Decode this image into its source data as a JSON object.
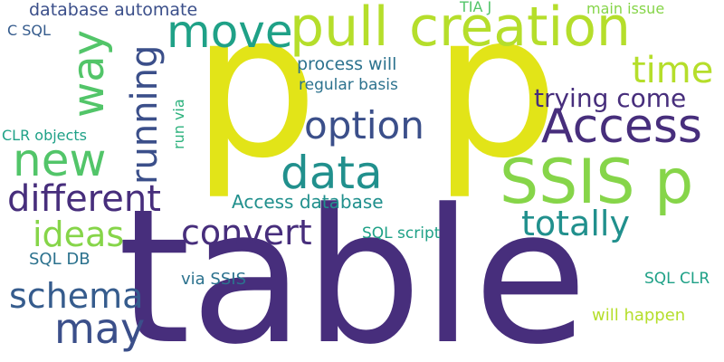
{
  "colors": {
    "background": "#ffffff",
    "dark_purple": "#472e7c",
    "indigo": "#3b4f8a",
    "steel_blue": "#365c8d",
    "blue": "#2c728e",
    "teal": "#21908d",
    "teal_green": "#1fa187",
    "green": "#2db27d",
    "light_green": "#52c569",
    "lime": "#86d549",
    "yellow_green": "#b5de2b",
    "yellow": "#e2e418"
  },
  "words": {
    "table": "table",
    "p_left": "p",
    "p_right": "p",
    "ssis_p": "SSIS p",
    "pull": "pull",
    "creation": "creation",
    "move": "move",
    "access": "Access",
    "option": "option",
    "data": "data",
    "new": "new",
    "way": "way",
    "running": "running",
    "different": "different",
    "convert": "convert",
    "ideas": "ideas",
    "schema": "schema",
    "may": "may",
    "time": "time",
    "trying_come": "trying come",
    "totally": "totally",
    "access_database": "Access database",
    "database_automate": "database automate",
    "tia_j": "TIA J",
    "main_issue": "main issue",
    "c_sql": "C SQL",
    "process_will": "process will",
    "regular_basis": "regular basis",
    "run_via": "run via",
    "clr_objects": "CLR objects",
    "sql_script": "SQL script",
    "sql_db": "SQL DB",
    "via_ssis": "via SSIS",
    "sql_clr": "SQL CLR",
    "will_happen": "will happen"
  }
}
